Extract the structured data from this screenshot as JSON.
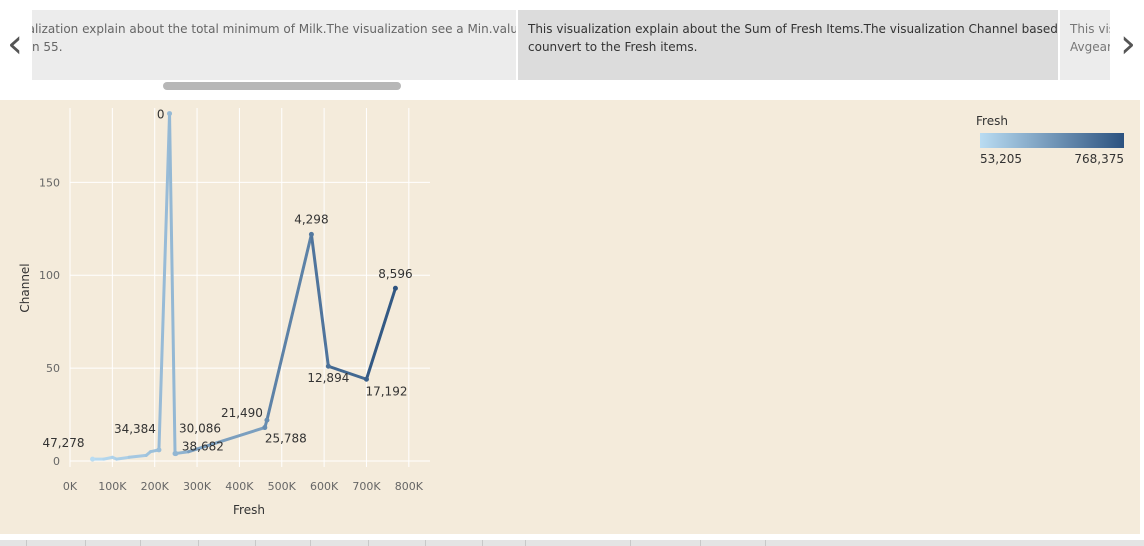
{
  "nav": {
    "prev_icon": "chevron-left-icon",
    "next_icon": "chevron-right-icon",
    "prev_glyph": "‹",
    "next_glyph": "›"
  },
  "story_points": [
    {
      "line1": "ualization explain about the total minimum of Milk.The visualization see a Min.value",
      "line2": "n 55."
    },
    {
      "line1": "This visualization explain about the Sum of Fresh Items.The visualization Channel based",
      "line2": "counvert to the Fresh items."
    },
    {
      "line1": "This vis",
      "line2": "Avgear"
    }
  ],
  "colors": {
    "background": "#f4ebdb",
    "gradient_low": "#b9dcf2",
    "gradient_high": "#2c527f",
    "line": "#4a78a8"
  },
  "chart_data": {
    "type": "line",
    "xlabel": "Fresh",
    "ylabel": "Channel",
    "xlim": [
      0,
      850000
    ],
    "ylim": [
      0,
      190
    ],
    "x_ticks": [
      0,
      100000,
      200000,
      300000,
      400000,
      500000,
      600000,
      700000,
      800000
    ],
    "x_tick_labels": [
      "0K",
      "100K",
      "200K",
      "300K",
      "400K",
      "500K",
      "600K",
      "700K",
      "800K"
    ],
    "y_ticks": [
      0,
      50,
      100,
      150
    ],
    "y_tick_labels": [
      "0",
      "50",
      "100",
      "150"
    ],
    "grid": true,
    "color_legend": {
      "title": "Fresh",
      "min_label": "53,205",
      "max_label": "768,375",
      "placement": "top-right"
    },
    "points": [
      {
        "x": 53205,
        "y": 1
      },
      {
        "x": 80000,
        "y": 1
      },
      {
        "x": 100000,
        "y": 2
      },
      {
        "x": 110000,
        "y": 1
      },
      {
        "x": 140000,
        "y": 2
      },
      {
        "x": 180000,
        "y": 3
      },
      {
        "x": 190000,
        "y": 5
      },
      {
        "x": 210000,
        "y": 6
      },
      {
        "x": 235000,
        "y": 187
      },
      {
        "x": 248000,
        "y": 4
      },
      {
        "x": 280000,
        "y": 5
      },
      {
        "x": 460000,
        "y": 18
      },
      {
        "x": 465000,
        "y": 22
      },
      {
        "x": 570000,
        "y": 122
      },
      {
        "x": 610000,
        "y": 51
      },
      {
        "x": 700000,
        "y": 44
      },
      {
        "x": 768375,
        "y": 93
      }
    ],
    "data_labels": [
      {
        "x": 53205,
        "y": 1,
        "text": "47,278"
      },
      {
        "x": 210000,
        "y": 6,
        "text": "34,384"
      },
      {
        "x": 235000,
        "y": 187,
        "text": "0"
      },
      {
        "x": 248000,
        "y": 4,
        "text": "30,086"
      },
      {
        "x": 250000,
        "y": 4,
        "text": "38,682"
      },
      {
        "x": 465000,
        "y": 22,
        "text": "21,490"
      },
      {
        "x": 460000,
        "y": 18,
        "text": "25,788"
      },
      {
        "x": 570000,
        "y": 122,
        "text": "4,298"
      },
      {
        "x": 610000,
        "y": 51,
        "text": "12,894"
      },
      {
        "x": 700000,
        "y": 44,
        "text": "17,192"
      },
      {
        "x": 768375,
        "y": 93,
        "text": "8,596"
      }
    ]
  }
}
